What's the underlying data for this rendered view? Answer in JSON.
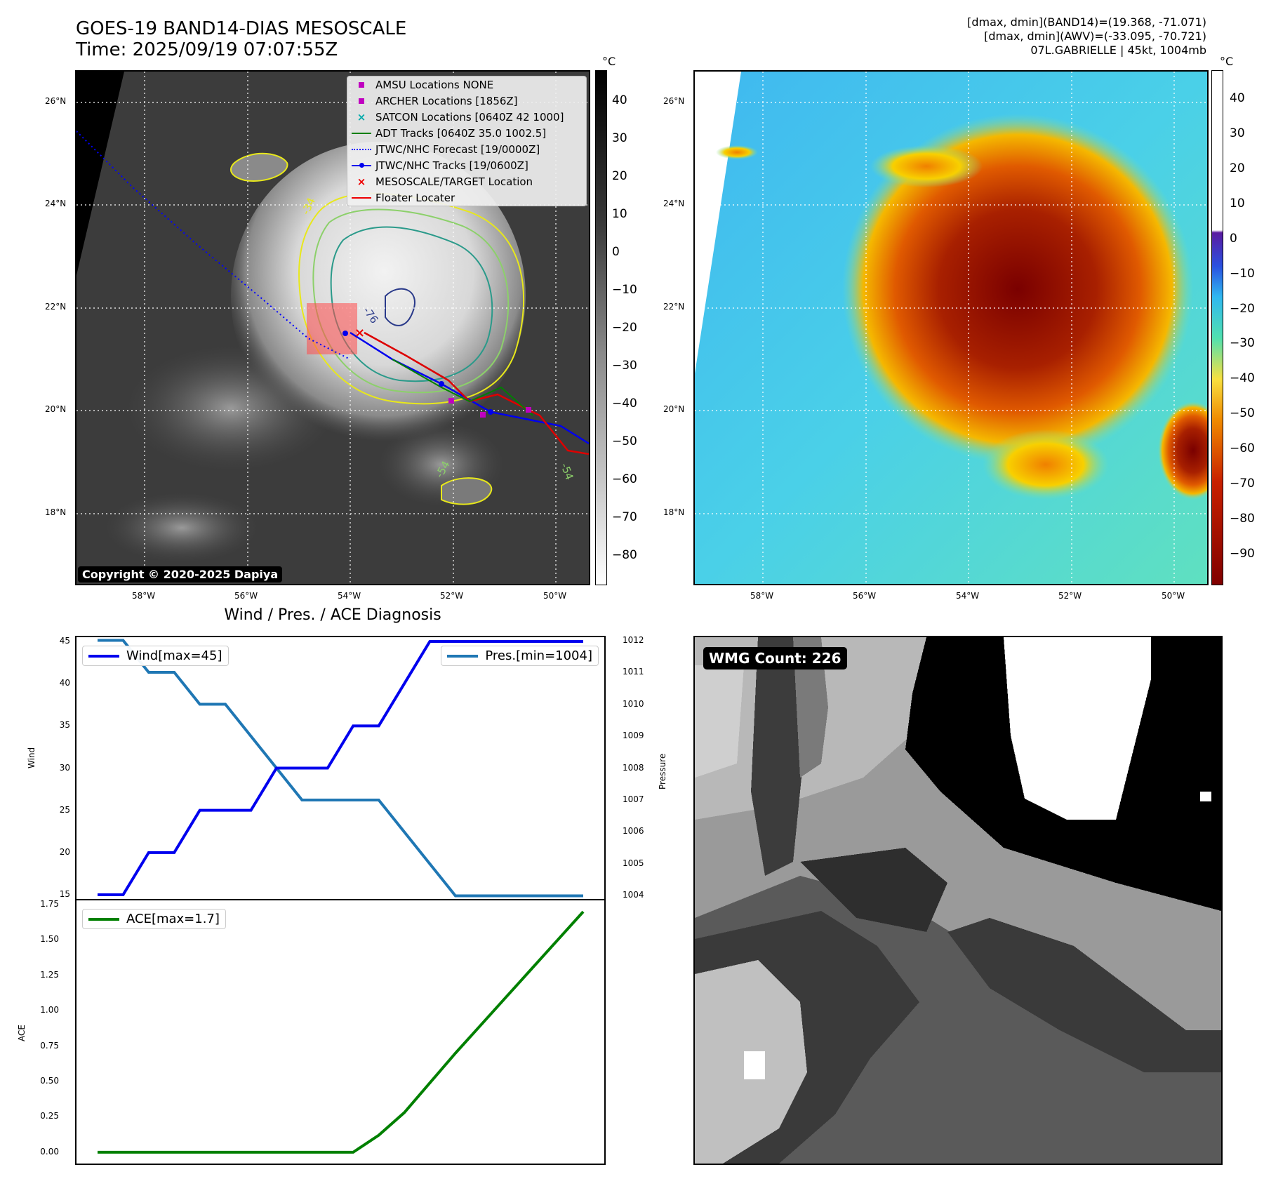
{
  "header": {
    "title_line1": "GOES-19 BAND14-DIAS MESOSCALE",
    "title_line2": "Time: 2025/09/19 07:07:55Z",
    "info_line1": "[dmax, dmin](BAND14)=(19.368, -71.071)",
    "info_line2": "[dmax, dmin](AWV)=(-33.095, -70.721)",
    "info_line3": "07L.GABRIELLE | 45kt, 1004mb"
  },
  "map_axes": {
    "lat_labels": [
      "26°N",
      "24°N",
      "22°N",
      "20°N",
      "18°N"
    ],
    "lon_labels": [
      "58°W",
      "56°W",
      "54°W",
      "52°W",
      "50°W"
    ]
  },
  "colorbar_left": {
    "unit": "°C",
    "ticks": [
      "40",
      "30",
      "20",
      "10",
      "0",
      "−10",
      "−20",
      "−30",
      "−40",
      "−50",
      "−60",
      "−70",
      "−80"
    ]
  },
  "colorbar_right": {
    "unit": "°C",
    "ticks": [
      "40",
      "30",
      "20",
      "10",
      "0",
      "−10",
      "−20",
      "−30",
      "−40",
      "−50",
      "−60",
      "−70",
      "−80",
      "−90"
    ]
  },
  "legend": {
    "amsu": "AMSU Locations NONE",
    "archer": "ARCHER Locations [1856Z]",
    "satcon": "SATCON Locations [0640Z 42 1000]",
    "adt": "ADT Tracks [0640Z 35.0 1002.5]",
    "forecast": "JTWC/NHC Forecast [19/0000Z]",
    "tracks": "JTWC/NHC Tracks [19/0600Z]",
    "target": "MESOSCALE/TARGET Location",
    "floater": "Floater Locater"
  },
  "copyright": "Copyright © 2020-2025 Dapiya",
  "contour_labels": [
    "-76",
    "-54",
    "-34",
    "-54"
  ],
  "wmg_count": "WMG Count: 226",
  "colors": {
    "wind": "#0000ee",
    "pressure": "#1f77b4",
    "ace": "#008000",
    "amsu": "#c000c0",
    "satcon": "#00aaaa",
    "adt": "#008000",
    "forecast": "#0000ff",
    "target": "#ee0000"
  },
  "chart_data": [
    {
      "type": "line",
      "title": "Wind / Pres. / ACE Diagnosis",
      "series": [
        {
          "name": "Wind[max=45]",
          "axis": "left",
          "values": [
            15,
            15,
            20,
            20,
            25,
            25,
            25,
            30,
            30,
            30,
            35,
            35,
            40,
            45,
            45,
            45,
            45,
            45,
            45,
            45
          ]
        },
        {
          "name": "Pres.[min=1004]",
          "axis": "right",
          "values": [
            1012,
            1012,
            1011,
            1011,
            1010,
            1010,
            1009,
            1008,
            1007,
            1007,
            1007,
            1007,
            1006,
            1005,
            1004,
            1004,
            1004,
            1004,
            1004,
            1004
          ]
        }
      ],
      "ylabel": "Wind",
      "ylabel_right": "Pressure",
      "ylim": [
        14.5,
        45.5
      ],
      "ylim_right": [
        1003.9,
        1012.1
      ],
      "yticks": [
        "45",
        "40",
        "35",
        "30",
        "25",
        "20",
        "15"
      ],
      "yticks_right": [
        "1012",
        "1011",
        "1010",
        "1009",
        "1008",
        "1007",
        "1006",
        "1005",
        "1004"
      ]
    },
    {
      "type": "line",
      "series": [
        {
          "name": "ACE[max=1.7]",
          "values": [
            0,
            0,
            0,
            0,
            0,
            0,
            0,
            0,
            0,
            0,
            0,
            0.12,
            0.28,
            0.49,
            0.7,
            0.9,
            1.1,
            1.3,
            1.5,
            1.7
          ]
        }
      ],
      "ylabel": "ACE",
      "ylim": [
        -0.08,
        1.78
      ],
      "yticks": [
        "1.75",
        "1.50",
        "1.25",
        "1.00",
        "0.75",
        "0.50",
        "0.25",
        "0.00"
      ]
    }
  ]
}
